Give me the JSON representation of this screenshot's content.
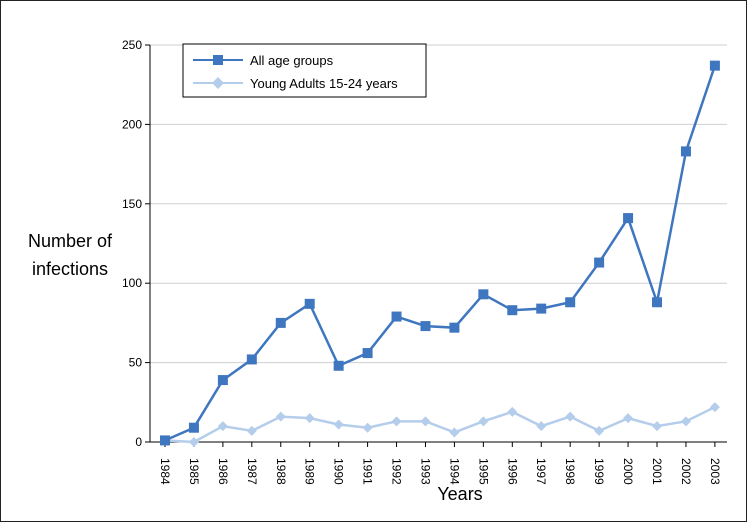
{
  "chart_data": {
    "type": "line",
    "title": "",
    "xlabel": "Years",
    "ylabel_lines": [
      "Number of",
      "infections"
    ],
    "categories": [
      "1984",
      "1985",
      "1986",
      "1987",
      "1988",
      "1989",
      "1990",
      "1991",
      "1992",
      "1993",
      "1994",
      "1995",
      "1996",
      "1997",
      "1998",
      "1999",
      "2000",
      "2001",
      "2002",
      "2003"
    ],
    "ylim": [
      0,
      250
    ],
    "yticks": [
      0,
      50,
      100,
      150,
      200,
      250
    ],
    "grid": "horizontal",
    "legend_position": "top-left",
    "series": [
      {
        "name": "All age groups",
        "color": "#3f76c0",
        "marker": "square",
        "values": [
          1,
          9,
          39,
          52,
          75,
          87,
          48,
          56,
          79,
          73,
          72,
          93,
          83,
          84,
          88,
          113,
          141,
          88,
          183,
          237
        ]
      },
      {
        "name": "Young Adults 15-24 years",
        "color": "#b4cdeb",
        "marker": "diamond",
        "values": [
          1,
          0,
          10,
          7,
          16,
          15,
          11,
          9,
          13,
          13,
          6,
          13,
          19,
          10,
          16,
          7,
          15,
          10,
          13,
          22
        ]
      }
    ]
  }
}
